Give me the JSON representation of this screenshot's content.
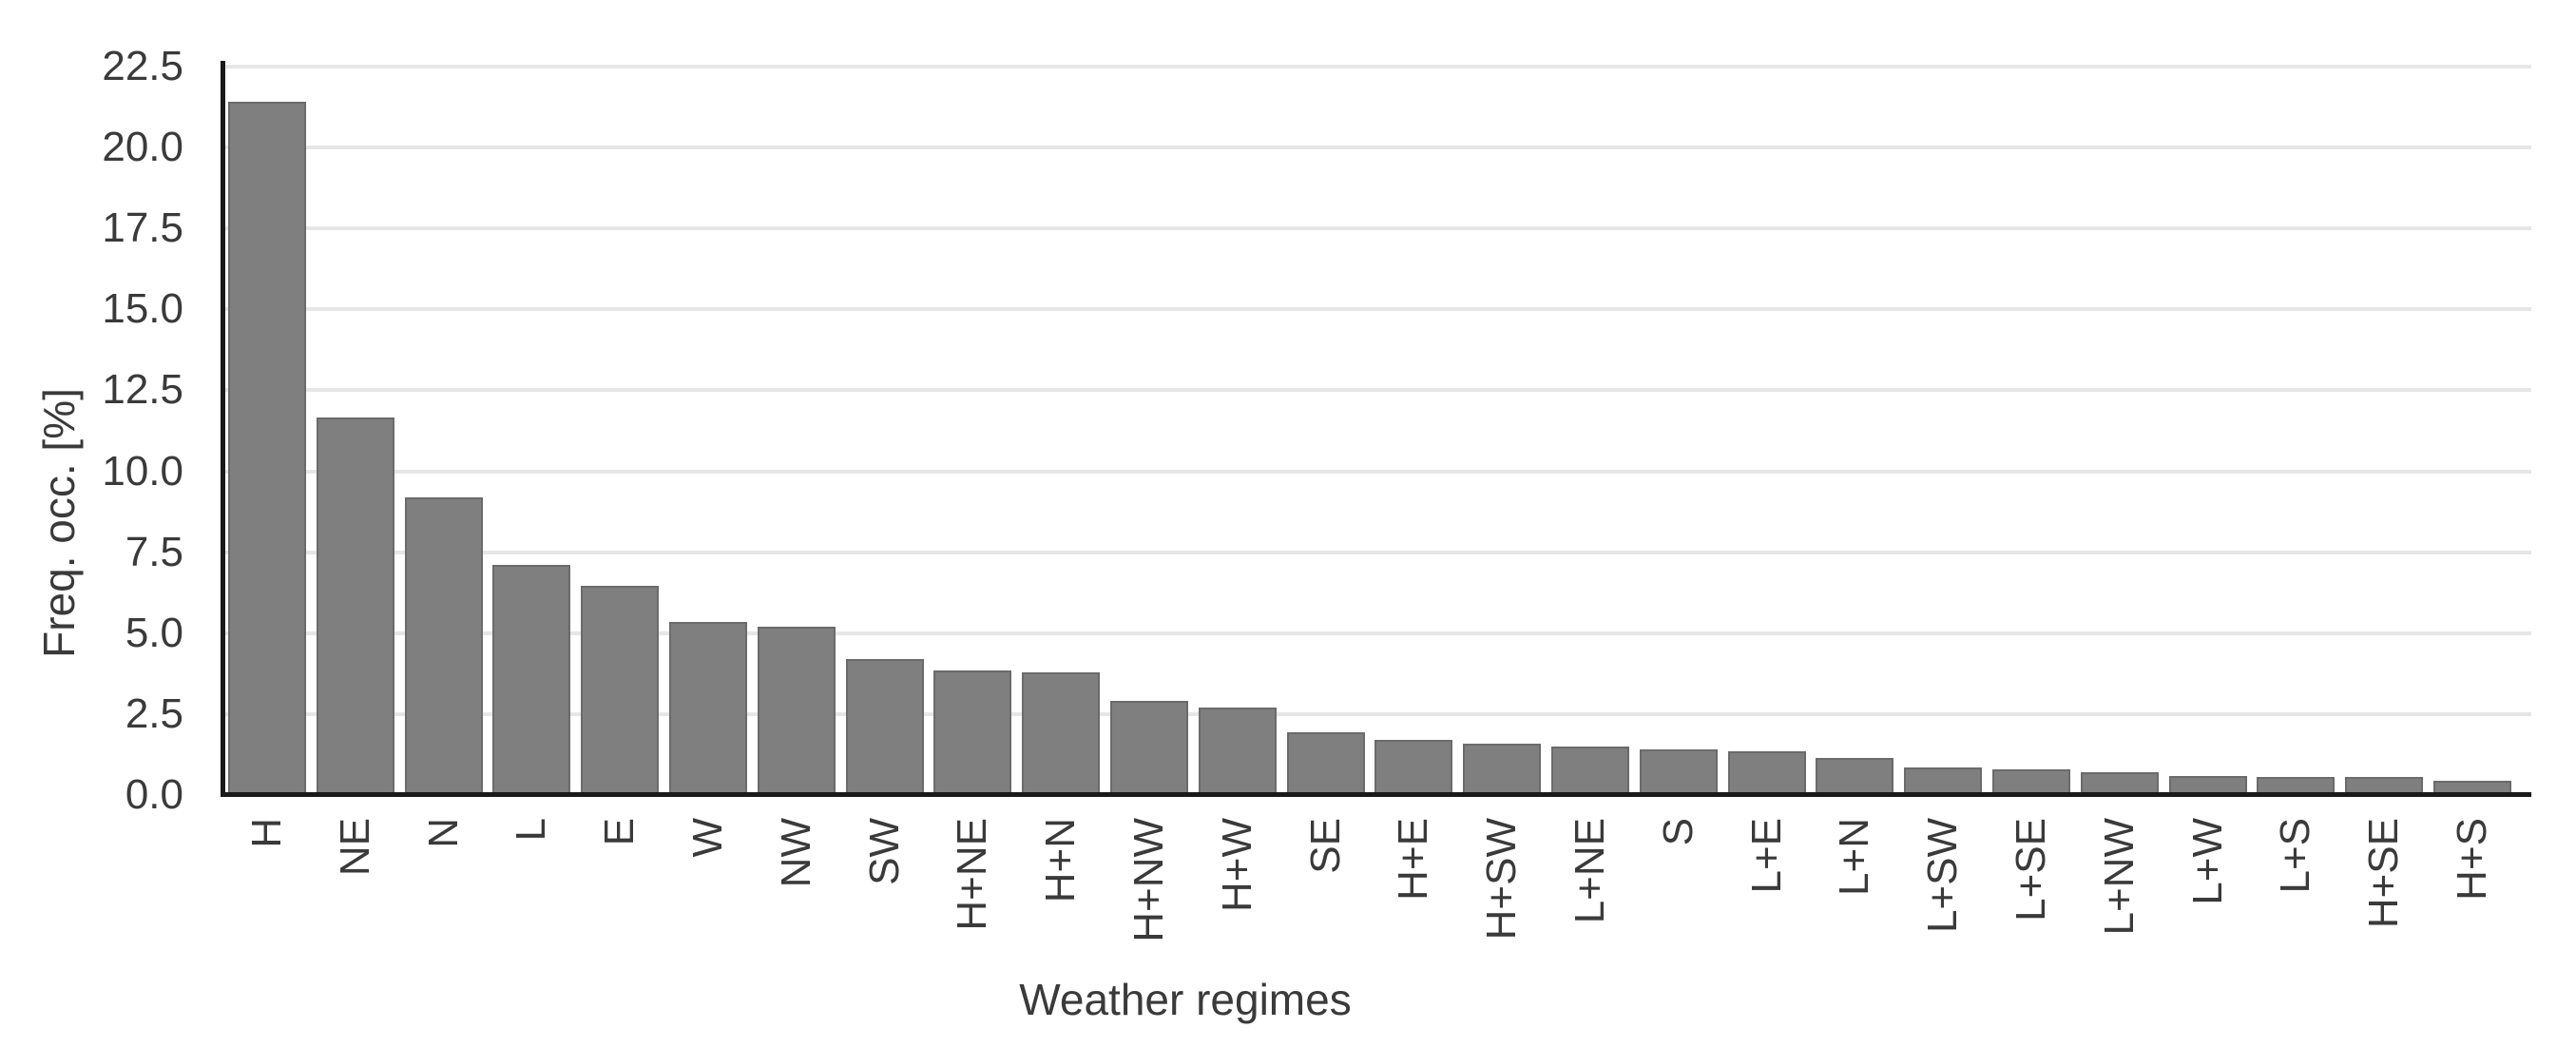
{
  "chart_data": {
    "type": "bar",
    "title": "",
    "xlabel": "Weather regimes",
    "ylabel": "Freq. occ. [%]",
    "categories": [
      "H",
      "NE",
      "N",
      "L",
      "E",
      "W",
      "NW",
      "SW",
      "H+NE",
      "H+N",
      "H+NW",
      "H+W",
      "SE",
      "H+E",
      "H+SW",
      "L+NE",
      "S",
      "L+E",
      "L+N",
      "L+SW",
      "L+SE",
      "L+NW",
      "L+W",
      "L+S",
      "H+SE",
      "H+S"
    ],
    "values": [
      21.4,
      11.65,
      9.2,
      7.1,
      6.45,
      5.35,
      5.2,
      4.2,
      3.85,
      3.8,
      2.9,
      2.7,
      1.95,
      1.7,
      1.6,
      1.5,
      1.4,
      1.35,
      1.15,
      0.85,
      0.8,
      0.7,
      0.6,
      0.55,
      0.55,
      0.45
    ],
    "ylim": [
      0,
      22.5
    ],
    "ytick_step": 2.5,
    "ytick_labels": [
      "0.0",
      "2.5",
      "5.0",
      "7.5",
      "10.0",
      "12.5",
      "15.0",
      "17.5",
      "20.0",
      "22.5"
    ],
    "grid": "horizontal",
    "legend": "none",
    "bar_color": "#7f7f7f",
    "grid_color": "#e6e6e6",
    "axis_color": "#1a1a1a",
    "text_color": "#3a3a3a"
  }
}
